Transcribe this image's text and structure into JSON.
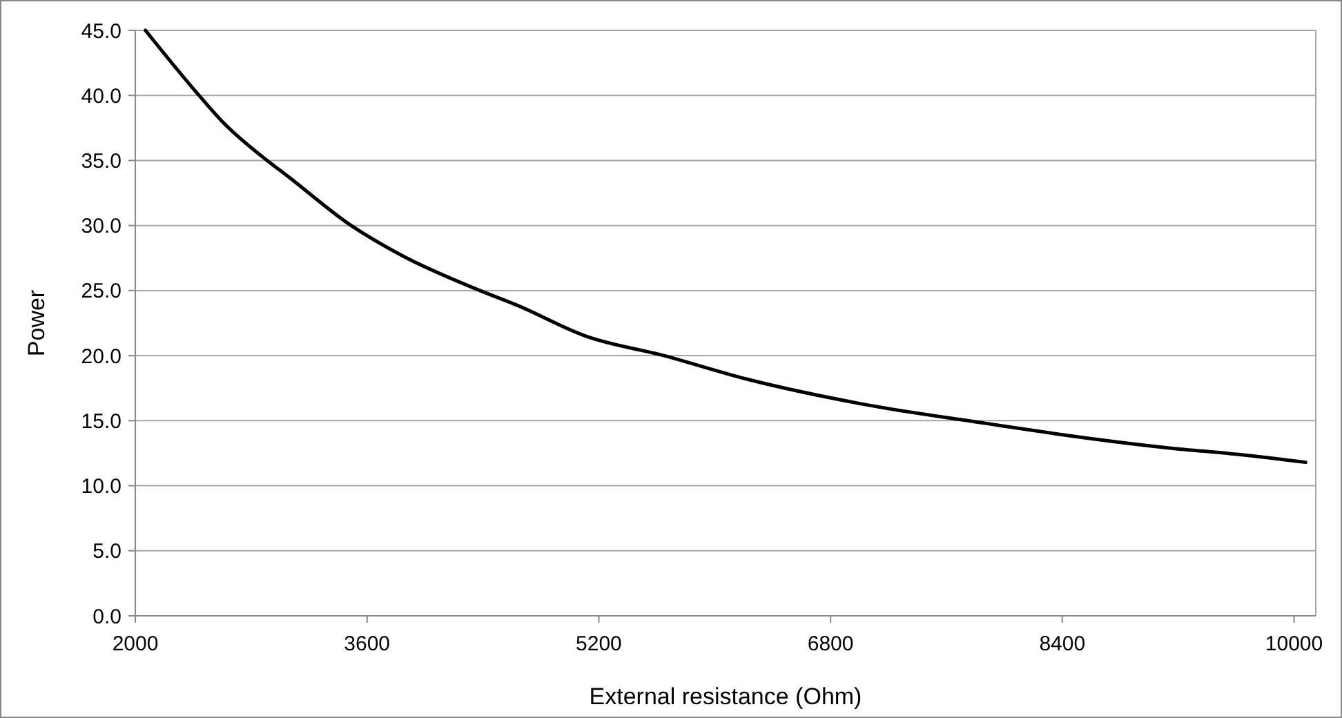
{
  "chart_data": {
    "type": "line",
    "xlabel": "External resistance (Ohm)",
    "ylabel": "Power",
    "x": [
      2070,
      2440,
      2600,
      2910,
      3040,
      3490,
      3840,
      4380,
      4630,
      5110,
      5650,
      6220,
      7010,
      7870,
      8350,
      9140,
      9620,
      10080
    ],
    "series": [
      {
        "color": "#000000",
        "values": [
          45.0,
          40.0,
          38.0,
          35.0,
          33.9,
          30.0,
          27.7,
          25.0,
          23.9,
          21.5,
          20.0,
          18.2,
          16.3,
          14.8,
          14.0,
          12.9,
          12.4,
          11.8
        ]
      }
    ],
    "xlim": [
      2000,
      10150
    ],
    "xticks": [
      2000,
      3600,
      5200,
      6800,
      8400,
      10000
    ],
    "ylim": [
      0,
      45
    ],
    "yticks": [
      {
        "value": 0,
        "label": "0.0"
      },
      {
        "value": 5,
        "label": "5.0"
      },
      {
        "value": 10,
        "label": "10.0"
      },
      {
        "value": 15,
        "label": "15.0"
      },
      {
        "value": 20,
        "label": "20.0"
      },
      {
        "value": 25,
        "label": "25.0"
      },
      {
        "value": 30,
        "label": "30.0"
      },
      {
        "value": 35,
        "label": "35.0"
      },
      {
        "value": 40,
        "label": "40.0"
      },
      {
        "value": 45,
        "label": "45.0"
      }
    ],
    "grid": "y",
    "marker": "none",
    "line_style": "solid"
  }
}
